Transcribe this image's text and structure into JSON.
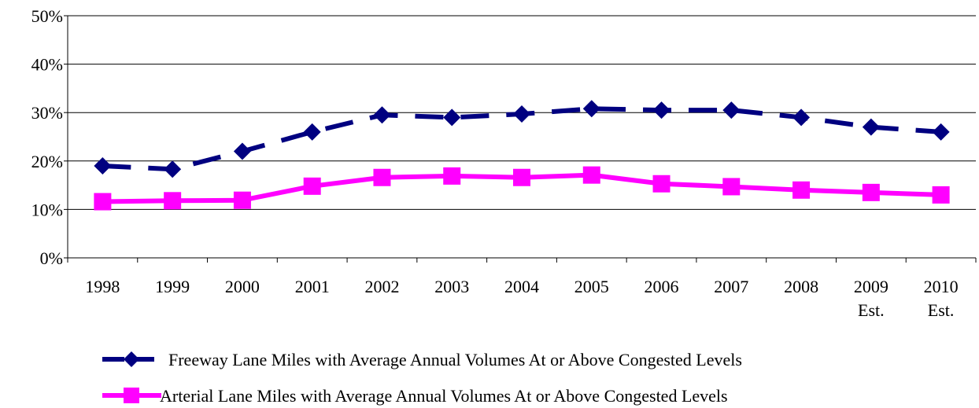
{
  "chart_data": {
    "type": "line",
    "categories": [
      "1998",
      "1999",
      "2000",
      "2001",
      "2002",
      "2003",
      "2004",
      "2005",
      "2006",
      "2007",
      "2008",
      "2009\nEst.",
      "2010\nEst."
    ],
    "series": [
      {
        "name": "Freeway Lane Miles with Average Annual Volumes At or Above Congested Levels",
        "color": "#000080",
        "dashed": true,
        "marker": "diamond",
        "values": [
          19,
          18.3,
          22,
          26,
          29.5,
          29,
          29.7,
          30.8,
          30.5,
          30.5,
          29,
          27,
          26
        ]
      },
      {
        "name": "Arterial Lane Miles with Average Annual Volumes At or Above Congested Levels",
        "color": "#ff00ff",
        "dashed": false,
        "marker": "square",
        "values": [
          11.6,
          11.8,
          11.9,
          14.8,
          16.6,
          16.9,
          16.6,
          17.1,
          15.3,
          14.7,
          14,
          13.5,
          13
        ]
      }
    ],
    "ylim": [
      0,
      50
    ],
    "yticks": [
      {
        "value": 0,
        "label": "0%"
      },
      {
        "value": 10,
        "label": "10%"
      },
      {
        "value": 20,
        "label": "20%"
      },
      {
        "value": 30,
        "label": "30%"
      },
      {
        "value": 40,
        "label": "40%"
      },
      {
        "value": 50,
        "label": "50%"
      }
    ],
    "grid": true
  }
}
